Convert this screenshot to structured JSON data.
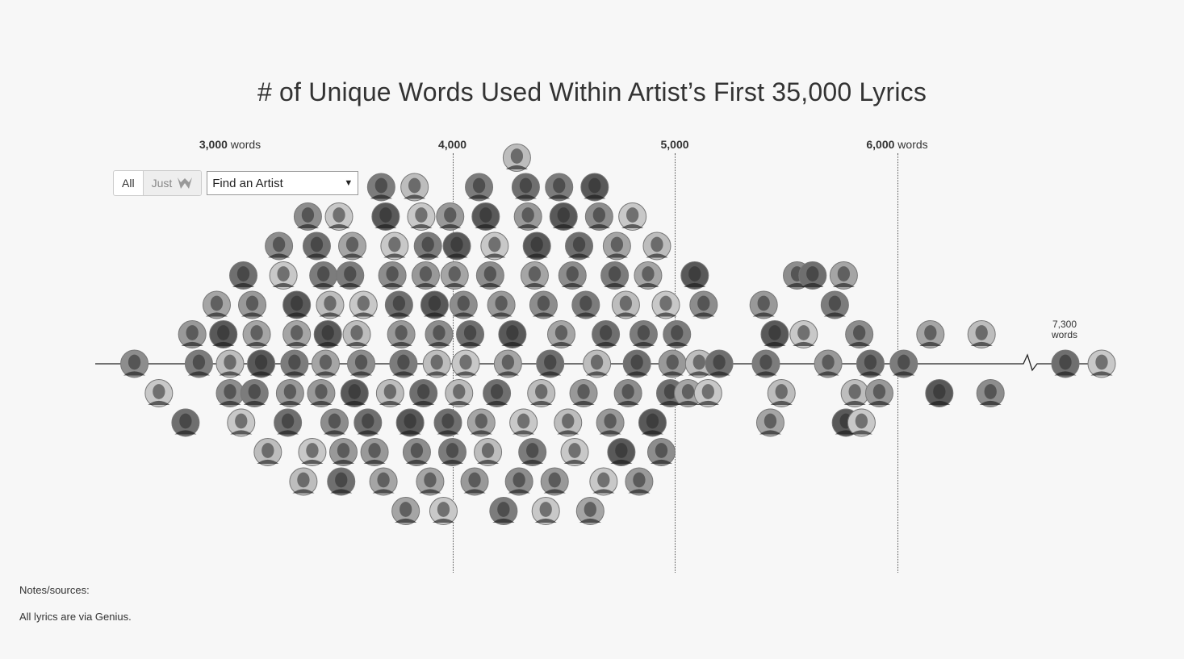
{
  "title": "# of Unique Words Used Within Artist’s First 35,000 Lyrics",
  "axis_labels": [
    {
      "value": 3000,
      "strong": "3,000",
      "rest": " words"
    },
    {
      "value": 4000,
      "strong": "4,000",
      "rest": ""
    },
    {
      "value": 5000,
      "strong": "5,000",
      "rest": ""
    },
    {
      "value": 6000,
      "strong": "6,000",
      "rest": " words"
    }
  ],
  "controls": {
    "all_label": "All",
    "just_label": "Just",
    "just_icon": "wu-tang-logo-icon",
    "select_value": "Find an Artist"
  },
  "end_label": {
    "value": "7,300",
    "unit": "words"
  },
  "notes": {
    "heading": "Notes/sources:",
    "text": "All lyrics are via Genius."
  },
  "colors": {
    "background": "#f7f7f7",
    "avatar_fill": "#9a9a9a",
    "axis": "#222222"
  },
  "chart_data": {
    "type": "scatter",
    "title": "# of Unique Words Used Within Artist’s First 35,000 Lyrics",
    "xlabel": "words",
    "x_ticks": [
      3000,
      4000,
      5000,
      6000
    ],
    "xlim": [
      2500,
      6500
    ],
    "axis_break_after": 6500,
    "outlier_value": 7300,
    "grid": "dotted vertical lines at 4,000, 5,000 and 6,000",
    "legend": "none",
    "points": [
      {
        "x": 2570,
        "rank": 0
      },
      {
        "x": 2680,
        "rank": -1
      },
      {
        "x": 2800,
        "rank": -2
      },
      {
        "x": 2830,
        "rank": 1
      },
      {
        "x": 2860,
        "rank": 0
      },
      {
        "x": 2940,
        "rank": 2
      },
      {
        "x": 2970,
        "rank": 1
      },
      {
        "x": 3000,
        "rank": 0
      },
      {
        "x": 3000,
        "rank": -1
      },
      {
        "x": 3050,
        "rank": -2
      },
      {
        "x": 3060,
        "rank": 3
      },
      {
        "x": 3100,
        "rank": 2
      },
      {
        "x": 3110,
        "rank": -1
      },
      {
        "x": 3120,
        "rank": 1
      },
      {
        "x": 3140,
        "rank": 0
      },
      {
        "x": 3170,
        "rank": -3
      },
      {
        "x": 3220,
        "rank": 4
      },
      {
        "x": 3240,
        "rank": 3
      },
      {
        "x": 3260,
        "rank": -2
      },
      {
        "x": 3270,
        "rank": -1
      },
      {
        "x": 3290,
        "rank": 0
      },
      {
        "x": 3300,
        "rank": 1
      },
      {
        "x": 3300,
        "rank": 2
      },
      {
        "x": 3330,
        "rank": -4
      },
      {
        "x": 3350,
        "rank": 5
      },
      {
        "x": 3370,
        "rank": -3
      },
      {
        "x": 3390,
        "rank": 4
      },
      {
        "x": 3410,
        "rank": -1
      },
      {
        "x": 3420,
        "rank": 3
      },
      {
        "x": 3430,
        "rank": 0
      },
      {
        "x": 3440,
        "rank": 1
      },
      {
        "x": 3450,
        "rank": 2
      },
      {
        "x": 3470,
        "rank": -2
      },
      {
        "x": 3490,
        "rank": 5
      },
      {
        "x": 3500,
        "rank": -4
      },
      {
        "x": 3510,
        "rank": -3
      },
      {
        "x": 3540,
        "rank": 3
      },
      {
        "x": 3550,
        "rank": 4
      },
      {
        "x": 3560,
        "rank": -1
      },
      {
        "x": 3570,
        "rank": 1
      },
      {
        "x": 3590,
        "rank": 0
      },
      {
        "x": 3600,
        "rank": 2
      },
      {
        "x": 3620,
        "rank": -2
      },
      {
        "x": 3650,
        "rank": -3
      },
      {
        "x": 3680,
        "rank": 6
      },
      {
        "x": 3690,
        "rank": -4
      },
      {
        "x": 3700,
        "rank": 5
      },
      {
        "x": 3720,
        "rank": -1
      },
      {
        "x": 3730,
        "rank": 3
      },
      {
        "x": 3740,
        "rank": 4
      },
      {
        "x": 3760,
        "rank": 2
      },
      {
        "x": 3770,
        "rank": 1
      },
      {
        "x": 3780,
        "rank": 0
      },
      {
        "x": 3790,
        "rank": -5
      },
      {
        "x": 3810,
        "rank": -2
      },
      {
        "x": 3830,
        "rank": 6
      },
      {
        "x": 3840,
        "rank": -3
      },
      {
        "x": 3860,
        "rank": 5
      },
      {
        "x": 3870,
        "rank": -1
      },
      {
        "x": 3880,
        "rank": 3
      },
      {
        "x": 3890,
        "rank": 4
      },
      {
        "x": 3900,
        "rank": -4
      },
      {
        "x": 3920,
        "rank": 2
      },
      {
        "x": 3930,
        "rank": 0
      },
      {
        "x": 3940,
        "rank": 1
      },
      {
        "x": 3960,
        "rank": -5
      },
      {
        "x": 3980,
        "rank": -2
      },
      {
        "x": 3990,
        "rank": 5
      },
      {
        "x": 4000,
        "rank": -3
      },
      {
        "x": 4010,
        "rank": 3
      },
      {
        "x": 4020,
        "rank": 4
      },
      {
        "x": 4030,
        "rank": -1
      },
      {
        "x": 4050,
        "rank": 2
      },
      {
        "x": 4060,
        "rank": 0
      },
      {
        "x": 4080,
        "rank": 1
      },
      {
        "x": 4100,
        "rank": -4
      },
      {
        "x": 4120,
        "rank": 6
      },
      {
        "x": 4130,
        "rank": -2
      },
      {
        "x": 4150,
        "rank": 5
      },
      {
        "x": 4160,
        "rank": -3
      },
      {
        "x": 4170,
        "rank": 3
      },
      {
        "x": 4190,
        "rank": 4
      },
      {
        "x": 4200,
        "rank": -1
      },
      {
        "x": 4220,
        "rank": 2
      },
      {
        "x": 4230,
        "rank": -5
      },
      {
        "x": 4250,
        "rank": 0
      },
      {
        "x": 4270,
        "rank": 1
      },
      {
        "x": 4290,
        "rank": 7
      },
      {
        "x": 4300,
        "rank": -4
      },
      {
        "x": 4320,
        "rank": -2
      },
      {
        "x": 4330,
        "rank": 6
      },
      {
        "x": 4340,
        "rank": 5
      },
      {
        "x": 4360,
        "rank": -3
      },
      {
        "x": 4370,
        "rank": 3
      },
      {
        "x": 4380,
        "rank": 4
      },
      {
        "x": 4400,
        "rank": -1
      },
      {
        "x": 4410,
        "rank": 2
      },
      {
        "x": 4420,
        "rank": -5
      },
      {
        "x": 4440,
        "rank": 0
      },
      {
        "x": 4460,
        "rank": -4
      },
      {
        "x": 4480,
        "rank": 6
      },
      {
        "x": 4490,
        "rank": 1
      },
      {
        "x": 4500,
        "rank": 5
      },
      {
        "x": 4520,
        "rank": -2
      },
      {
        "x": 4540,
        "rank": 3
      },
      {
        "x": 4550,
        "rank": -3
      },
      {
        "x": 4570,
        "rank": 4
      },
      {
        "x": 4590,
        "rank": -1
      },
      {
        "x": 4600,
        "rank": 2
      },
      {
        "x": 4620,
        "rank": -5
      },
      {
        "x": 4640,
        "rank": 6
      },
      {
        "x": 4650,
        "rank": 0
      },
      {
        "x": 4660,
        "rank": 5
      },
      {
        "x": 4680,
        "rank": -4
      },
      {
        "x": 4690,
        "rank": 1
      },
      {
        "x": 4710,
        "rank": -2
      },
      {
        "x": 4730,
        "rank": 3
      },
      {
        "x": 4740,
        "rank": 4
      },
      {
        "x": 4760,
        "rank": -3
      },
      {
        "x": 4780,
        "rank": 2
      },
      {
        "x": 4790,
        "rank": -1
      },
      {
        "x": 4810,
        "rank": 5
      },
      {
        "x": 4830,
        "rank": 0
      },
      {
        "x": 4840,
        "rank": -4
      },
      {
        "x": 4860,
        "rank": 1
      },
      {
        "x": 4880,
        "rank": 3
      },
      {
        "x": 4900,
        "rank": -2
      },
      {
        "x": 4920,
        "rank": 4
      },
      {
        "x": 4940,
        "rank": -3
      },
      {
        "x": 4960,
        "rank": 2
      },
      {
        "x": 4980,
        "rank": -1
      },
      {
        "x": 4990,
        "rank": 0
      },
      {
        "x": 5010,
        "rank": 1
      },
      {
        "x": 5060,
        "rank": -1
      },
      {
        "x": 5090,
        "rank": 3
      },
      {
        "x": 5110,
        "rank": 0
      },
      {
        "x": 5130,
        "rank": 2
      },
      {
        "x": 5150,
        "rank": -1
      },
      {
        "x": 5200,
        "rank": 0
      },
      {
        "x": 5400,
        "rank": 2
      },
      {
        "x": 5410,
        "rank": 0
      },
      {
        "x": 5430,
        "rank": -2
      },
      {
        "x": 5450,
        "rank": 1
      },
      {
        "x": 5480,
        "rank": -1
      },
      {
        "x": 5550,
        "rank": 3
      },
      {
        "x": 5580,
        "rank": 1
      },
      {
        "x": 5620,
        "rank": 3
      },
      {
        "x": 5690,
        "rank": 0
      },
      {
        "x": 5720,
        "rank": 2
      },
      {
        "x": 5760,
        "rank": 3
      },
      {
        "x": 5770,
        "rank": -2
      },
      {
        "x": 5810,
        "rank": -1
      },
      {
        "x": 5830,
        "rank": 1
      },
      {
        "x": 5840,
        "rank": -2
      },
      {
        "x": 5880,
        "rank": 0
      },
      {
        "x": 5920,
        "rank": -1
      },
      {
        "x": 6030,
        "rank": 0
      },
      {
        "x": 6150,
        "rank": 1
      },
      {
        "x": 6190,
        "rank": -1
      },
      {
        "x": 6380,
        "rank": 1
      },
      {
        "x": 6420,
        "rank": -1
      }
    ],
    "outliers": [
      {
        "x": 7300,
        "rank": 0
      },
      {
        "x": 7450,
        "rank": 0
      }
    ]
  }
}
